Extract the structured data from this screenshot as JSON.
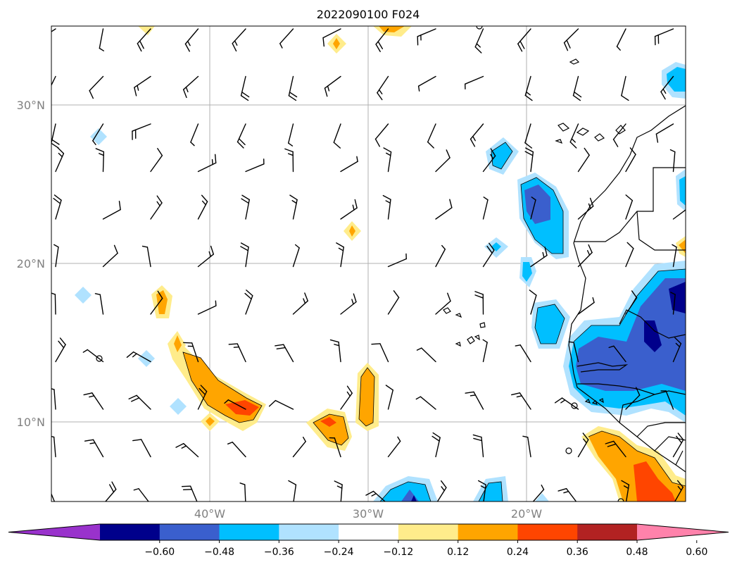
{
  "title": "2022090100 F024",
  "lat_labels": [
    "30°N",
    "20°N",
    "10°N"
  ],
  "lon_labels": [
    "40°W",
    "30°W",
    "20°W"
  ],
  "colorbar": {
    "ticks": [
      "−0.60",
      "−0.48",
      "−0.36",
      "−0.24",
      "−0.12",
      "0.12",
      "0.24",
      "0.36",
      "0.48",
      "0.60"
    ],
    "colors": [
      "#9932cc",
      "#00008b",
      "#3a5fcd",
      "#00bfff",
      "#b0e2ff",
      "#ffffff",
      "#ffec8b",
      "#ffa500",
      "#ff4500",
      "#b22222",
      "#ff82ab"
    ]
  },
  "colors": {
    "grid": "#b0b0b0",
    "coast": "#000000",
    "barb": "#000000"
  }
}
